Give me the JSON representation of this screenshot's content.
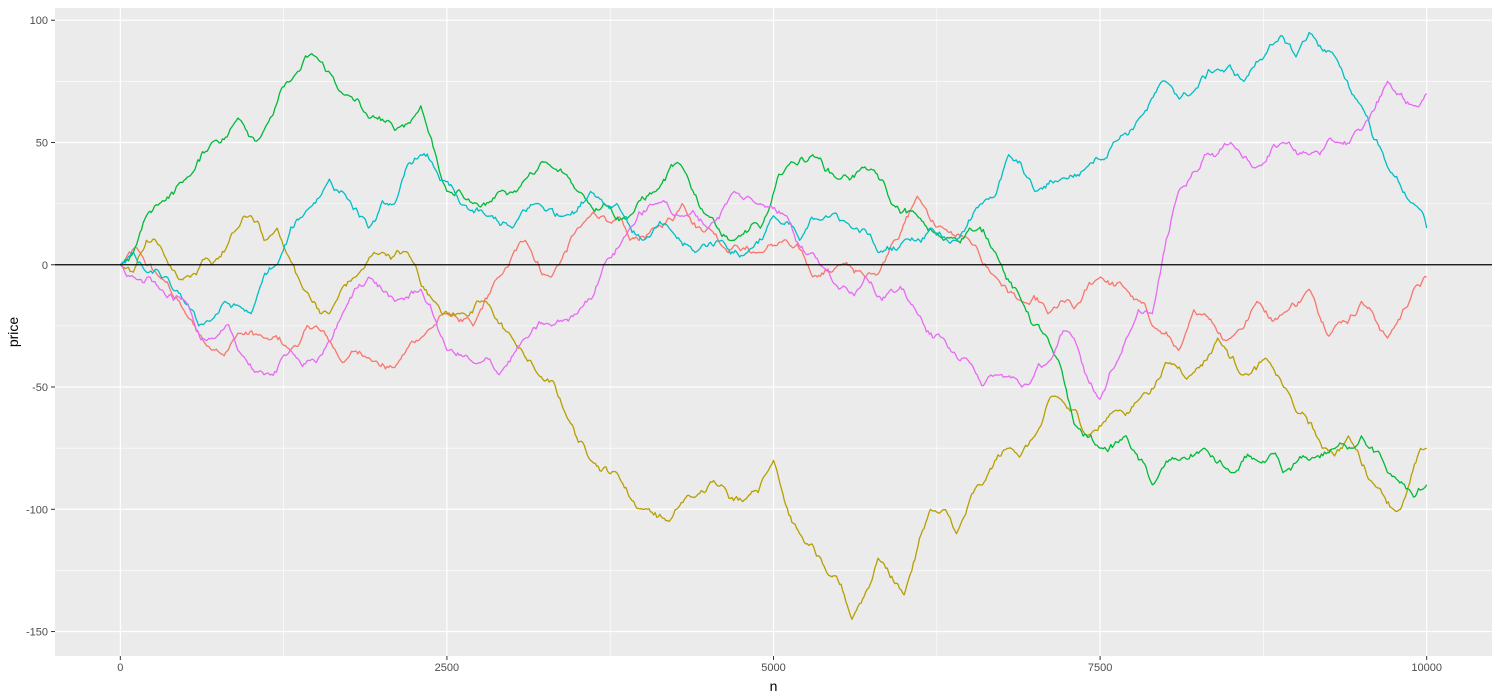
{
  "chart_data": {
    "type": "line",
    "title": "",
    "xlabel": "n",
    "ylabel": "price",
    "xlim": [
      -500,
      10500
    ],
    "ylim": [
      -160,
      105
    ],
    "x_ticks": [
      0,
      2500,
      5000,
      7500,
      10000
    ],
    "x_tick_labels": [
      "0",
      "2500",
      "5000",
      "7500",
      "10000"
    ],
    "y_ticks": [
      -150,
      -100,
      -50,
      0,
      50,
      100
    ],
    "y_tick_labels": [
      "-150",
      "-100",
      "-50",
      "0",
      "50",
      "100"
    ],
    "grid": true,
    "legend": "none",
    "reference_line": {
      "y": 0,
      "color": "#000000"
    },
    "panel_background": "#EBEBEB",
    "grid_color": "#FFFFFF",
    "series": [
      {
        "color": "#F8766D",
        "x": [
          0,
          150,
          300,
          500,
          700,
          900,
          1100,
          1300,
          1500,
          1700,
          1900,
          2100,
          2300,
          2500,
          2700,
          2900,
          3100,
          3300,
          3500,
          3700,
          3900,
          4100,
          4300,
          4500,
          4700,
          4900,
          5100,
          5300,
          5500,
          5700,
          5900,
          6100,
          6300,
          6500,
          6700,
          6900,
          7100,
          7300,
          7500,
          7700,
          7900,
          8100,
          8300,
          8500,
          8700,
          8900,
          9100,
          9300,
          9500,
          9700,
          9900,
          10000
        ],
        "y": [
          0,
          5,
          -5,
          -20,
          -35,
          -28,
          -30,
          -35,
          -25,
          -40,
          -38,
          -42,
          -30,
          -20,
          -25,
          -5,
          10,
          -5,
          15,
          20,
          10,
          15,
          25,
          15,
          8,
          5,
          10,
          -5,
          0,
          -5,
          8,
          28,
          15,
          10,
          -5,
          -15,
          -20,
          -18,
          -5,
          -10,
          -25,
          -35,
          -20,
          -30,
          -15,
          -20,
          -10,
          -25,
          -15,
          -30,
          -10,
          -5
        ]
      },
      {
        "color": "#B79F00",
        "x": [
          0,
          100,
          200,
          300,
          500,
          700,
          900,
          1000,
          1100,
          1200,
          1400,
          1600,
          1800,
          2000,
          2200,
          2400,
          2600,
          2800,
          3000,
          3200,
          3400,
          3600,
          3800,
          4000,
          4200,
          4400,
          4600,
          4800,
          5000,
          5200,
          5400,
          5600,
          5800,
          6000,
          6200,
          6400,
          6600,
          6800,
          7000,
          7200,
          7400,
          7600,
          7800,
          8000,
          8200,
          8400,
          8600,
          8800,
          9000,
          9200,
          9400,
          9600,
          9800,
          10000
        ],
        "y": [
          0,
          -3,
          10,
          8,
          -5,
          0,
          15,
          20,
          10,
          15,
          -10,
          -20,
          -5,
          5,
          5,
          -15,
          -20,
          -15,
          -30,
          -45,
          -60,
          -80,
          -85,
          -100,
          -105,
          -95,
          -90,
          -95,
          -80,
          -110,
          -125,
          -145,
          -120,
          -135,
          -100,
          -110,
          -90,
          -75,
          -70,
          -55,
          -70,
          -60,
          -55,
          -40,
          -45,
          -30,
          -45,
          -40,
          -60,
          -75,
          -70,
          -90,
          -100,
          -75
        ]
      },
      {
        "color": "#00BA38",
        "x": [
          0,
          100,
          200,
          300,
          500,
          700,
          900,
          1100,
          1300,
          1500,
          1700,
          1900,
          2100,
          2300,
          2500,
          2700,
          2900,
          3100,
          3300,
          3500,
          3700,
          3900,
          4100,
          4300,
          4500,
          4700,
          4900,
          5100,
          5300,
          5500,
          5700,
          5900,
          6100,
          6300,
          6500,
          6700,
          6900,
          7100,
          7300,
          7500,
          7700,
          7900,
          8100,
          8300,
          8500,
          8700,
          8900,
          9100,
          9300,
          9500,
          9700,
          9900,
          10000
        ],
        "y": [
          0,
          5,
          20,
          25,
          35,
          50,
          60,
          55,
          75,
          85,
          70,
          60,
          55,
          65,
          30,
          25,
          30,
          35,
          40,
          30,
          25,
          20,
          30,
          40,
          20,
          10,
          15,
          40,
          45,
          35,
          40,
          25,
          20,
          10,
          15,
          5,
          -15,
          -30,
          -65,
          -75,
          -70,
          -90,
          -80,
          -75,
          -85,
          -80,
          -85,
          -80,
          -75,
          -70,
          -85,
          -95,
          -90
        ]
      },
      {
        "color": "#00BFC4",
        "x": [
          0,
          100,
          200,
          400,
          600,
          800,
          1000,
          1200,
          1400,
          1600,
          1700,
          1900,
          2100,
          2300,
          2400,
          2600,
          2800,
          3000,
          3200,
          3400,
          3600,
          3800,
          4000,
          4200,
          4400,
          4600,
          4800,
          5000,
          5200,
          5400,
          5600,
          5800,
          6000,
          6200,
          6400,
          6600,
          6800,
          7000,
          7200,
          7400,
          7600,
          7800,
          8000,
          8200,
          8400,
          8600,
          8800,
          9000,
          9100,
          9300,
          9500,
          9700,
          9900,
          10000
        ],
        "y": [
          0,
          5,
          -3,
          -10,
          -25,
          -15,
          -20,
          0,
          20,
          35,
          30,
          15,
          25,
          45,
          40,
          25,
          20,
          15,
          25,
          20,
          30,
          25,
          10,
          15,
          5,
          10,
          5,
          20,
          10,
          20,
          15,
          5,
          10,
          15,
          10,
          25,
          45,
          30,
          35,
          40,
          50,
          60,
          75,
          70,
          80,
          75,
          90,
          85,
          95,
          85,
          65,
          40,
          25,
          15
        ]
      },
      {
        "color": "#E76BF3",
        "x": [
          0,
          100,
          300,
          500,
          700,
          900,
          1100,
          1300,
          1500,
          1700,
          1900,
          2100,
          2300,
          2500,
          2700,
          2900,
          3100,
          3300,
          3500,
          3700,
          3900,
          4100,
          4300,
          4500,
          4700,
          4900,
          5100,
          5300,
          5500,
          5700,
          5900,
          6100,
          6300,
          6500,
          6700,
          6900,
          7100,
          7300,
          7500,
          7700,
          7900,
          8100,
          8300,
          8500,
          8700,
          8900,
          9100,
          9300,
          9500,
          9700,
          9900,
          10000
        ],
        "y": [
          0,
          -5,
          -10,
          -15,
          -30,
          -35,
          -45,
          -35,
          -40,
          -20,
          -5,
          -15,
          -10,
          -35,
          -40,
          -45,
          -30,
          -25,
          -20,
          0,
          15,
          25,
          20,
          15,
          30,
          25,
          20,
          5,
          -10,
          -5,
          -10,
          -20,
          -30,
          -40,
          -45,
          -50,
          -40,
          -30,
          -55,
          -30,
          -20,
          30,
          45,
          50,
          40,
          50,
          45,
          50,
          55,
          75,
          65,
          70
        ]
      }
    ]
  }
}
